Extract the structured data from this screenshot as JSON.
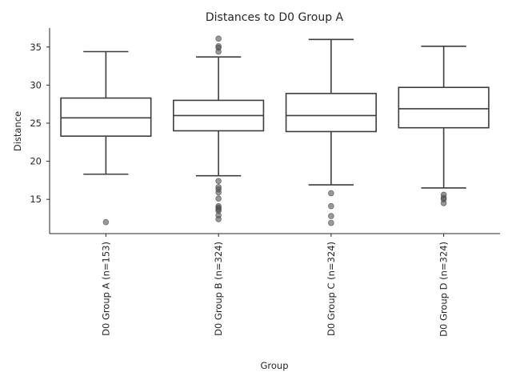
{
  "chart_data": {
    "type": "box",
    "title": "Distances to D0 Group A",
    "xlabel": "Group",
    "ylabel": "Distance",
    "ylim": [
      10.5,
      37.5
    ],
    "yticks": [
      15,
      20,
      25,
      30,
      35
    ],
    "grid": false,
    "categories": [
      "D0 Group A (n=153)",
      "D0 Group B (n=324)",
      "D0 Group C (n=324)",
      "D0 Group D (n=324)"
    ],
    "boxes": [
      {
        "whislo": 18.3,
        "q1": 23.3,
        "med": 25.7,
        "q3": 28.3,
        "whishi": 34.4,
        "fliers": [
          12.0
        ]
      },
      {
        "whislo": 18.1,
        "q1": 24.0,
        "med": 26.0,
        "q3": 28.0,
        "whishi": 33.7,
        "fliers": [
          36.1,
          35.1,
          34.9,
          34.4,
          17.4,
          16.6,
          16.3,
          15.9,
          15.1,
          14.1,
          13.9,
          13.7,
          13.5,
          12.9,
          12.4
        ]
      },
      {
        "whislo": 16.9,
        "q1": 23.9,
        "med": 26.0,
        "q3": 28.9,
        "whishi": 36.0,
        "fliers": [
          15.8,
          14.1,
          12.8,
          11.9
        ]
      },
      {
        "whislo": 16.5,
        "q1": 24.4,
        "med": 26.9,
        "q3": 29.7,
        "whishi": 35.1,
        "fliers": [
          15.6,
          15.2,
          15.0,
          14.5
        ]
      }
    ]
  }
}
